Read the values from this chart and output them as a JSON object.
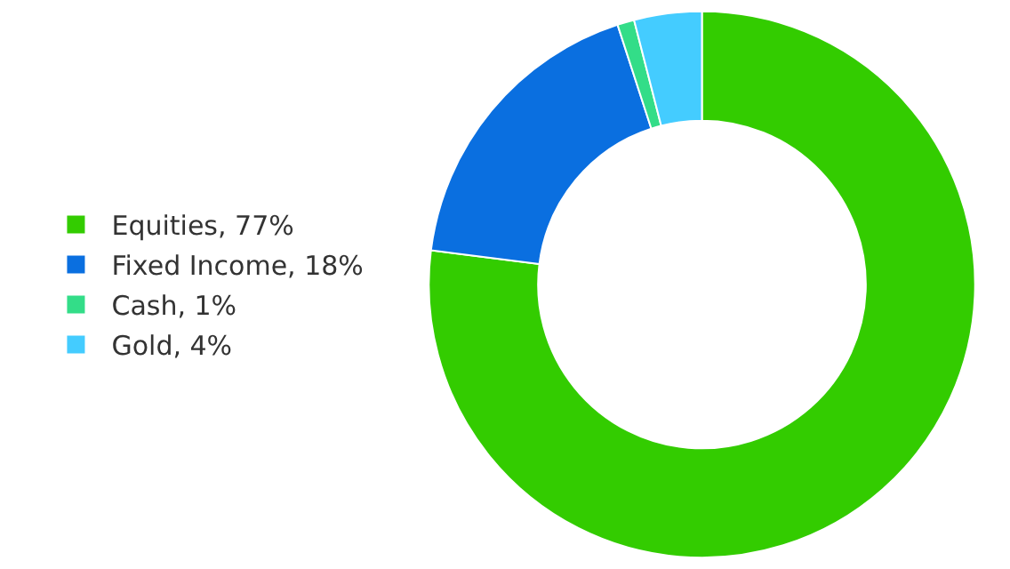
{
  "chart_data": {
    "type": "donut",
    "categories": [
      "Equities, 77%",
      "Fixed Income, 18%",
      "Cash, 1%",
      "Gold, 4%"
    ],
    "values": [
      77,
      18,
      1,
      4
    ],
    "colors": [
      "#33cc00",
      "#0a6fe0",
      "#33dd88",
      "#44ccff"
    ],
    "legend": "left"
  }
}
